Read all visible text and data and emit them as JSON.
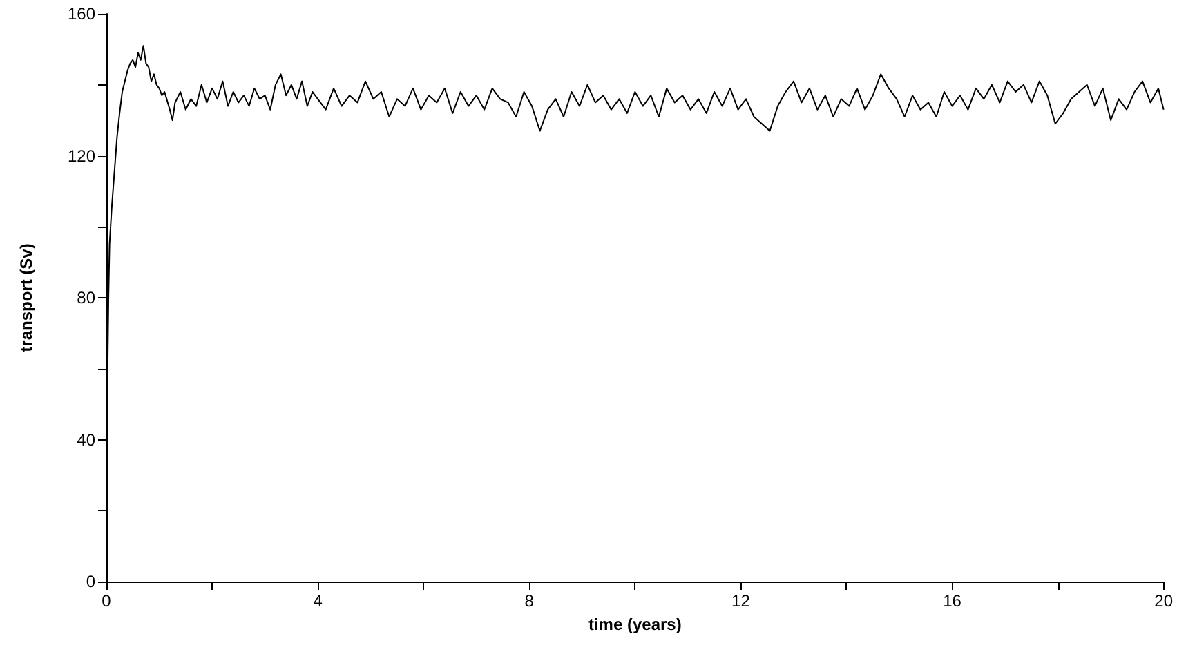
{
  "chart_data": {
    "type": "line",
    "xlabel": "time (years)",
    "ylabel": "transport (Sv)",
    "xlim": [
      0,
      20
    ],
    "ylim": [
      0,
      160
    ],
    "xticks": [
      0,
      {
        "value": 2,
        "label": null
      },
      4,
      {
        "value": 6,
        "label": null
      },
      8,
      {
        "value": 10,
        "label": null
      },
      12,
      {
        "value": 14,
        "label": null
      },
      16,
      {
        "value": 18,
        "label": null
      },
      20
    ],
    "yticks": [
      0,
      {
        "value": 20,
        "label": null
      },
      40,
      {
        "value": 60,
        "label": null
      },
      80,
      {
        "value": 100,
        "label": null
      },
      120,
      {
        "value": 140,
        "label": null
      },
      160
    ],
    "grid": false,
    "marker": "none",
    "line_style": "solid",
    "series": [
      {
        "color": "#000000",
        "x": [
          0,
          0.02,
          0.04,
          0.06,
          0.1,
          0.15,
          0.2,
          0.25,
          0.3,
          0.35,
          0.4,
          0.45,
          0.5,
          0.55,
          0.6,
          0.65,
          0.7,
          0.75,
          0.8,
          0.85,
          0.9,
          0.95,
          1.0,
          1.05,
          1.1,
          1.2,
          1.25,
          1.3,
          1.4,
          1.5,
          1.6,
          1.7,
          1.8,
          1.9,
          2.0,
          2.1,
          2.2,
          2.3,
          2.4,
          2.5,
          2.6,
          2.7,
          2.8,
          2.9,
          3.0,
          3.1,
          3.2,
          3.3,
          3.4,
          3.5,
          3.6,
          3.7,
          3.8,
          3.9,
          4.0,
          4.15,
          4.3,
          4.45,
          4.6,
          4.75,
          4.9,
          5.05,
          5.2,
          5.35,
          5.5,
          5.65,
          5.8,
          5.95,
          6.1,
          6.25,
          6.4,
          6.55,
          6.7,
          6.85,
          7.0,
          7.15,
          7.3,
          7.45,
          7.6,
          7.75,
          7.9,
          8.05,
          8.2,
          8.35,
          8.5,
          8.65,
          8.8,
          8.95,
          9.1,
          9.25,
          9.4,
          9.55,
          9.7,
          9.85,
          10.0,
          10.15,
          10.3,
          10.45,
          10.6,
          10.75,
          10.9,
          11.05,
          11.2,
          11.35,
          11.5,
          11.65,
          11.8,
          11.95,
          12.1,
          12.25,
          12.4,
          12.55,
          12.7,
          12.85,
          13.0,
          13.15,
          13.3,
          13.45,
          13.6,
          13.75,
          13.9,
          14.05,
          14.2,
          14.35,
          14.5,
          14.65,
          14.8,
          14.95,
          15.1,
          15.25,
          15.4,
          15.55,
          15.7,
          15.85,
          16.0,
          16.15,
          16.3,
          16.45,
          16.6,
          16.75,
          16.9,
          17.05,
          17.2,
          17.35,
          17.5,
          17.65,
          17.8,
          17.95,
          18.1,
          18.25,
          18.4,
          18.55,
          18.7,
          18.85,
          19.0,
          19.15,
          19.3,
          19.45,
          19.6,
          19.75,
          19.9,
          20.0
        ],
        "values": [
          25,
          55,
          80,
          95,
          105,
          115,
          125,
          132,
          138,
          141,
          144,
          146,
          147,
          145,
          149,
          147,
          151,
          146,
          145,
          141,
          143,
          140,
          139,
          137,
          138,
          133,
          130,
          135,
          138,
          133,
          136,
          134,
          140,
          135,
          139,
          136,
          141,
          134,
          138,
          135,
          137,
          134,
          139,
          136,
          137,
          133,
          140,
          143,
          137,
          140,
          136,
          141,
          134,
          138,
          136,
          133,
          139,
          134,
          137,
          135,
          141,
          136,
          138,
          131,
          136,
          134,
          139,
          133,
          137,
          135,
          139,
          132,
          138,
          134,
          137,
          133,
          139,
          136,
          135,
          131,
          138,
          134,
          127,
          133,
          136,
          131,
          138,
          134,
          140,
          135,
          137,
          133,
          136,
          132,
          138,
          134,
          137,
          131,
          139,
          135,
          137,
          133,
          136,
          132,
          138,
          134,
          139,
          133,
          136,
          131,
          129,
          127,
          134,
          138,
          141,
          135,
          139,
          133,
          137,
          131,
          136,
          134,
          139,
          133,
          137,
          143,
          139,
          136,
          131,
          137,
          133,
          135,
          131,
          138,
          134,
          137,
          133,
          139,
          136,
          140,
          135,
          141,
          138,
          140,
          135,
          141,
          137,
          129,
          132,
          136,
          138,
          140,
          134,
          139,
          130,
          136,
          133,
          138,
          141,
          135,
          139,
          133
        ]
      }
    ]
  }
}
